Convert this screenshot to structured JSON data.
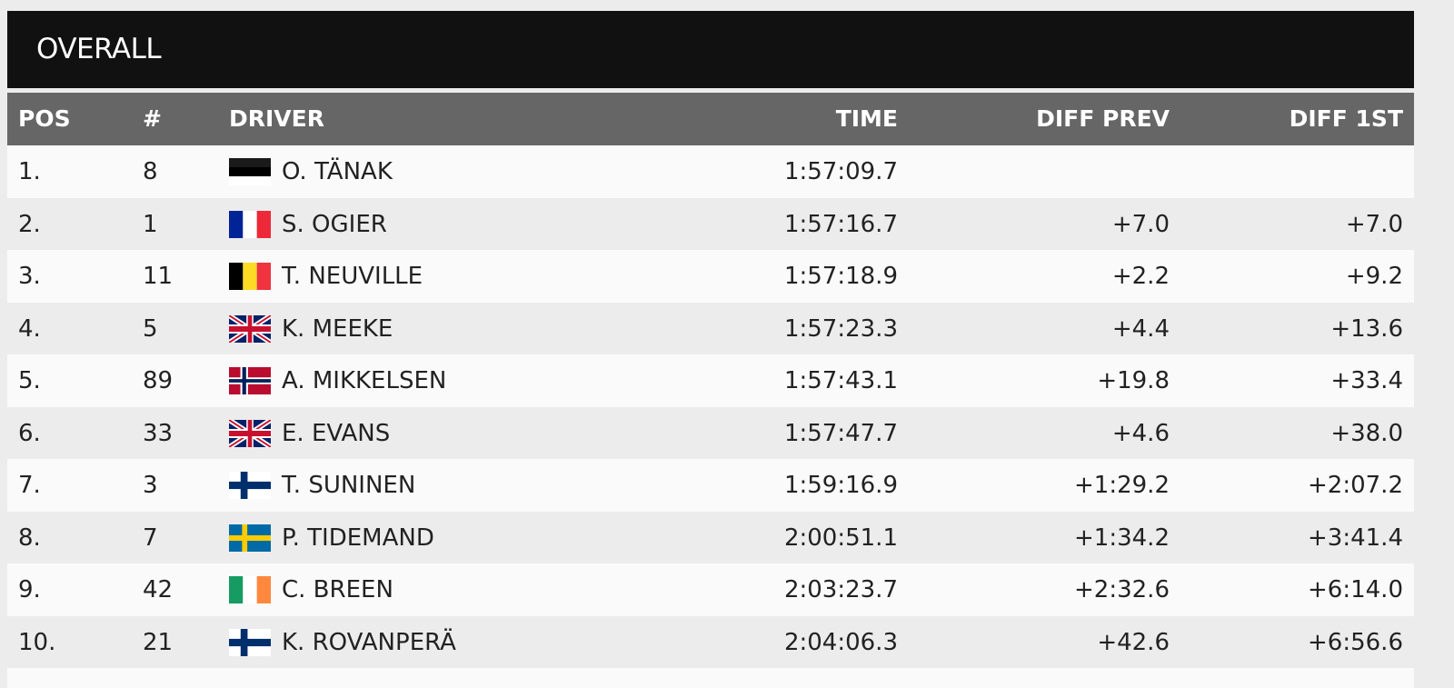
{
  "title": "OVERALL",
  "table": {
    "columns": [
      "POS",
      "#",
      "DRIVER",
      "TIME",
      "DIFF PREV",
      "DIFF 1ST"
    ],
    "rows": [
      {
        "pos": "1.",
        "number": "8",
        "driver": "O. TÄNAK",
        "time": "1:57:09.7"
      },
      {
        "pos": "2.",
        "number": "1",
        "driver": "S. OGIER",
        "time": "1:57:16.7",
        "diff_prev": "+7.0",
        "diff_1st": "+7.0"
      },
      {
        "pos": "3.",
        "number": "11",
        "driver": "T. NEUVILLE",
        "time": "1:57:18.9",
        "diff_prev": "+2.2",
        "diff_1st": "+9.2"
      },
      {
        "pos": "4.",
        "number": "5",
        "driver": "K. MEEKE",
        "time": "1:57:23.3",
        "diff_prev": "+4.4",
        "diff_1st": "+13.6"
      },
      {
        "pos": "5.",
        "number": "89",
        "driver": "A. MIKKELSEN",
        "time": "1:57:43.1",
        "diff_prev": "+19.8",
        "diff_1st": "+33.4"
      },
      {
        "pos": "6.",
        "number": "33",
        "driver": "E. EVANS",
        "time": "1:57:47.7",
        "diff_prev": "+4.6",
        "diff_1st": "+38.0"
      },
      {
        "pos": "7.",
        "number": "3",
        "driver": "T. SUNINEN",
        "time": "1:59:16.9",
        "diff_prev": "+1:29.2",
        "diff_1st": "+2:07.2"
      },
      {
        "pos": "8.",
        "number": "7",
        "driver": "P. TIDEMAND",
        "time": "2:00:51.1",
        "diff_prev": "+1:34.2",
        "diff_1st": "+3:41.4"
      },
      {
        "pos": "9.",
        "number": "42",
        "driver": "C. BREEN",
        "time": "2:03:23.7",
        "diff_prev": "+2:32.6",
        "diff_1st": "+6:14.0"
      },
      {
        "pos": "10.",
        "number": "21",
        "driver": "K. ROVANPERÄ",
        "time": "2:04:06.3",
        "diff_prev": "+42.6",
        "diff_1st": "+6:56.6"
      }
    ]
  }
}
